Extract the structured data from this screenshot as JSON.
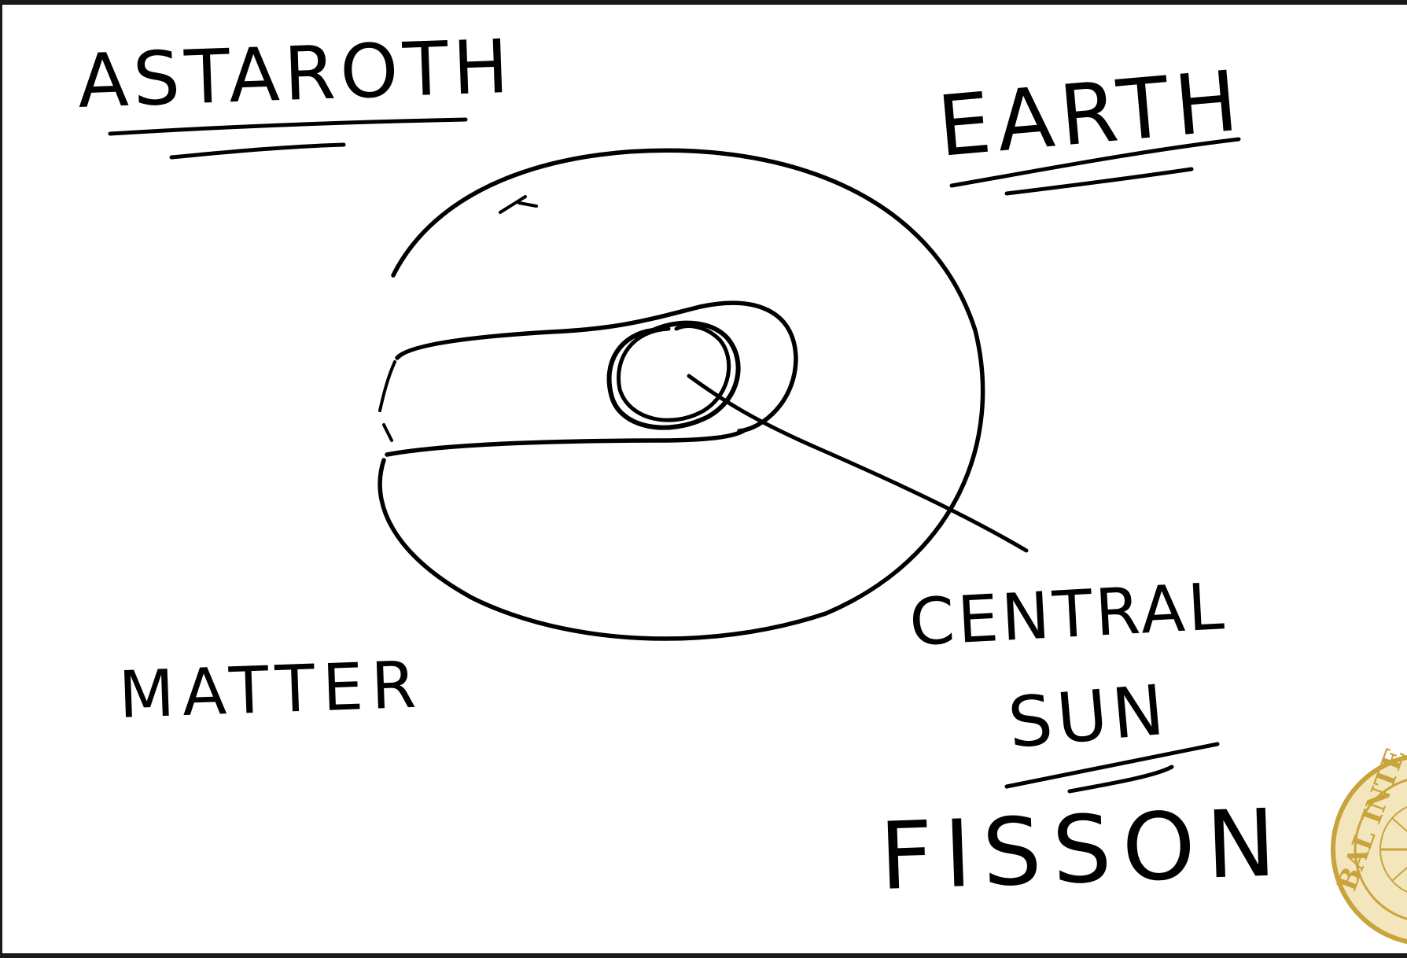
{
  "colors": {
    "ink": "#000000",
    "background": "#ffffff",
    "frame": "#1a1a1a",
    "seal_gold": "#c9a43c",
    "seal_light": "#f3e6bd"
  },
  "labels": {
    "top_left": "ASTAROTH",
    "top_right": "EARTH",
    "bottom_left": "MATTER",
    "central_line1": "CENTRAL",
    "central_line2": "SUN",
    "bottom_right": "FISSON"
  },
  "seal": {
    "partial_text": "BAL INTE"
  }
}
